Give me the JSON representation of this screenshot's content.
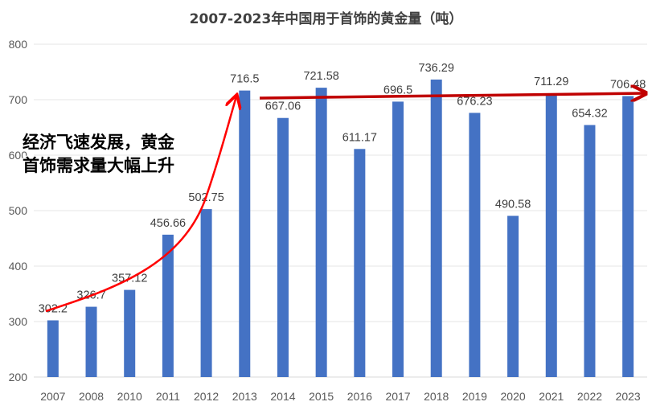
{
  "chart_data": {
    "type": "bar",
    "title": "2007-2023年中国用于首饰的黄金量（吨）",
    "categories": [
      "2007",
      "2008",
      "2010",
      "2011",
      "2012",
      "2013",
      "2014",
      "2015",
      "2016",
      "2017",
      "2018",
      "2019",
      "2020",
      "2021",
      "2022",
      "2023"
    ],
    "values": [
      302.2,
      326.7,
      357.12,
      456.66,
      502.75,
      716.5,
      667.06,
      721.58,
      611.17,
      696.5,
      736.29,
      676.23,
      490.58,
      711.29,
      654.32,
      706.48
    ],
    "data_labels": [
      "302.2",
      "326.7",
      "357.12",
      "456.66",
      "502.75",
      "716.5",
      "667.06",
      "721.58",
      "611.17",
      "696.5",
      "736.29",
      "676.23",
      "490.58",
      "711.29",
      "654.32",
      "706.48"
    ],
    "ylim": [
      200,
      800
    ],
    "yticks": [
      "200",
      "300",
      "400",
      "500",
      "600",
      "700",
      "800"
    ],
    "xlabel": "",
    "ylabel": "",
    "grid": true,
    "bar_color": "#4472C4",
    "annotation": [
      "经济飞速发展，黄金",
      "首饰需求量大幅上升"
    ],
    "arrow_colors": {
      "rise": "#FF0000",
      "plateau": "#C00000"
    }
  }
}
